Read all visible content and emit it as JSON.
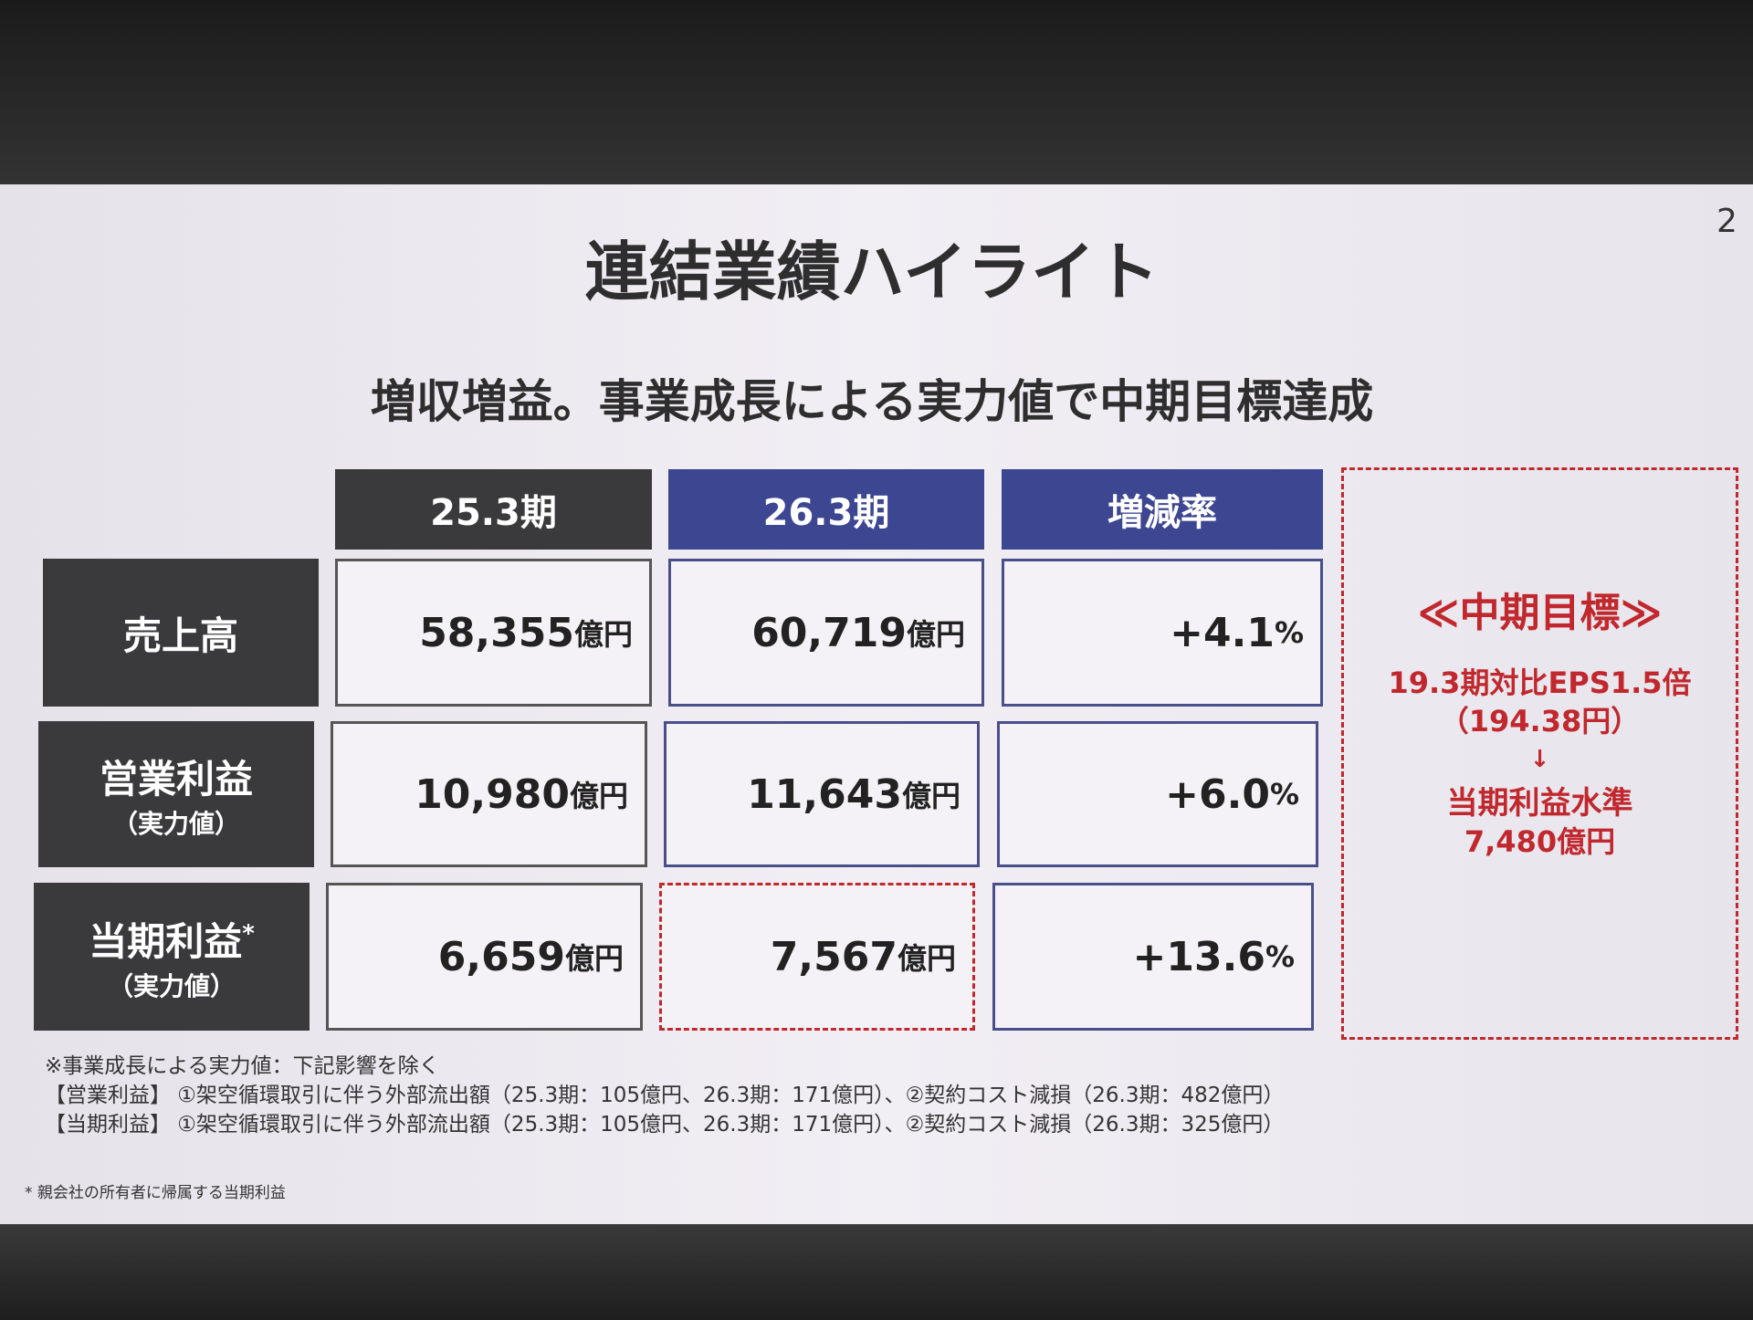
{
  "page_number": "2",
  "title": "連結業績ハイライト",
  "subtitle": "増収増益。事業成長による実力値で中期目標達成",
  "table": {
    "columns": [
      "25.3期",
      "26.3期",
      "増減率"
    ],
    "rows": [
      {
        "label": "売上高",
        "cells": [
          {
            "value": "58,355",
            "unit": "億円"
          },
          {
            "value": "60,719",
            "unit": "億円"
          },
          {
            "value": "+4.1",
            "unit": "%"
          }
        ]
      },
      {
        "label": "営業利益",
        "sublabel": "（実力値）",
        "cells": [
          {
            "value": "10,980",
            "unit": "億円"
          },
          {
            "value": "11,643",
            "unit": "億円"
          },
          {
            "value": "+6.0",
            "unit": "%"
          }
        ]
      },
      {
        "label": "当期利益",
        "label_mark": "*",
        "sublabel": "（実力値）",
        "cells": [
          {
            "value": "6,659",
            "unit": "億円"
          },
          {
            "value": "7,567",
            "unit": "億円"
          },
          {
            "value": "+13.6",
            "unit": "%"
          }
        ]
      }
    ]
  },
  "target": {
    "title": "≪中期目標≫",
    "lines": [
      "19.3期対比EPS1.5倍",
      "（194.38円）",
      "↓",
      "当期利益水準",
      "7,480億円"
    ]
  },
  "notes": [
    "※事業成長による実力値：下記影響を除く",
    "【営業利益】 ①架空循環取引に伴う外部流出額（25.3期：105億円、26.3期：171億円）、②契約コスト減損（26.3期：482億円）",
    "【当期利益】 ①架空循環取引に伴う外部流出額（25.3期：105億円、26.3期：171億円）、②契約コスト減損（26.3期：325億円）"
  ],
  "footnote": "* 親会社の所有者に帰属する当期利益"
}
